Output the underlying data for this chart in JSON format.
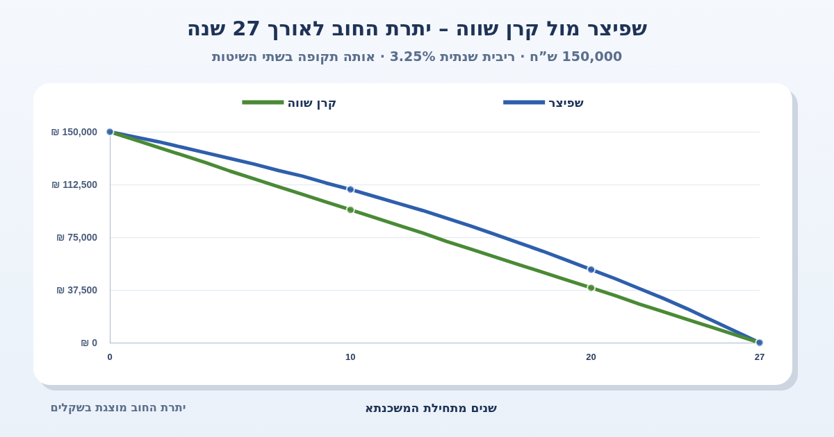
{
  "chart_data": {
    "type": "line",
    "title": "שפיצר מול קרן שווה – יתרת החוב לאורך 27 שנה",
    "subtitle": "150,000 ש”ח · ריבית שנתית 3.25% · אותה תקופה בשתי השיטות",
    "xlabel": "שנים מתחילת המשכנתא",
    "annotations": [
      "יתרת החוב מוצגת בשקלים"
    ],
    "x": [
      0,
      1,
      2,
      3,
      4,
      5,
      6,
      7,
      8,
      9,
      10,
      11,
      12,
      13,
      14,
      15,
      16,
      17,
      18,
      19,
      20,
      21,
      22,
      23,
      24,
      25,
      26,
      27
    ],
    "series": [
      {
        "name": "שפיצר",
        "color": "#2e5fac",
        "values": [
          150000,
          146500,
          143000,
          139000,
          135000,
          131000,
          127000,
          122500,
          118500,
          113500,
          109000,
          104000,
          99000,
          94000,
          88500,
          83000,
          77000,
          71000,
          65000,
          58500,
          52000,
          45500,
          38500,
          31500,
          24000,
          16000,
          8000,
          0
        ]
      },
      {
        "name": "קרן שווה",
        "color": "#4a8a36",
        "values": [
          150000,
          144500,
          139000,
          133500,
          128000,
          122000,
          116500,
          111000,
          105500,
          100000,
          94500,
          89000,
          83500,
          78000,
          72000,
          66500,
          61000,
          55500,
          50000,
          44500,
          39000,
          33500,
          27500,
          22000,
          16500,
          11000,
          5500,
          0
        ]
      },
      {
        "type": "scatter",
        "color": "#2e5fac",
        "x": [
          0,
          10,
          20,
          27
        ],
        "values": [
          150000,
          109000,
          52000,
          0
        ]
      },
      {
        "type": "scatter",
        "color": "#4a8a36",
        "x": [
          10,
          20
        ],
        "values": [
          94500,
          39000
        ]
      }
    ],
    "xlim": [
      0,
      27
    ],
    "xticks": [
      0,
      10,
      20,
      27
    ],
    "ylim": [
      0,
      150000
    ],
    "yticks": [
      {
        "value": 0,
        "label": "₪ 0"
      },
      {
        "value": 37500,
        "label": "₪ 37,500"
      },
      {
        "value": 75000,
        "label": "₪ 75,000"
      },
      {
        "value": 112500,
        "label": "₪ 112,500"
      },
      {
        "value": 150000,
        "label": "₪ 150,000"
      }
    ],
    "grid": "y",
    "legend": "top",
    "line_style": "solid"
  }
}
